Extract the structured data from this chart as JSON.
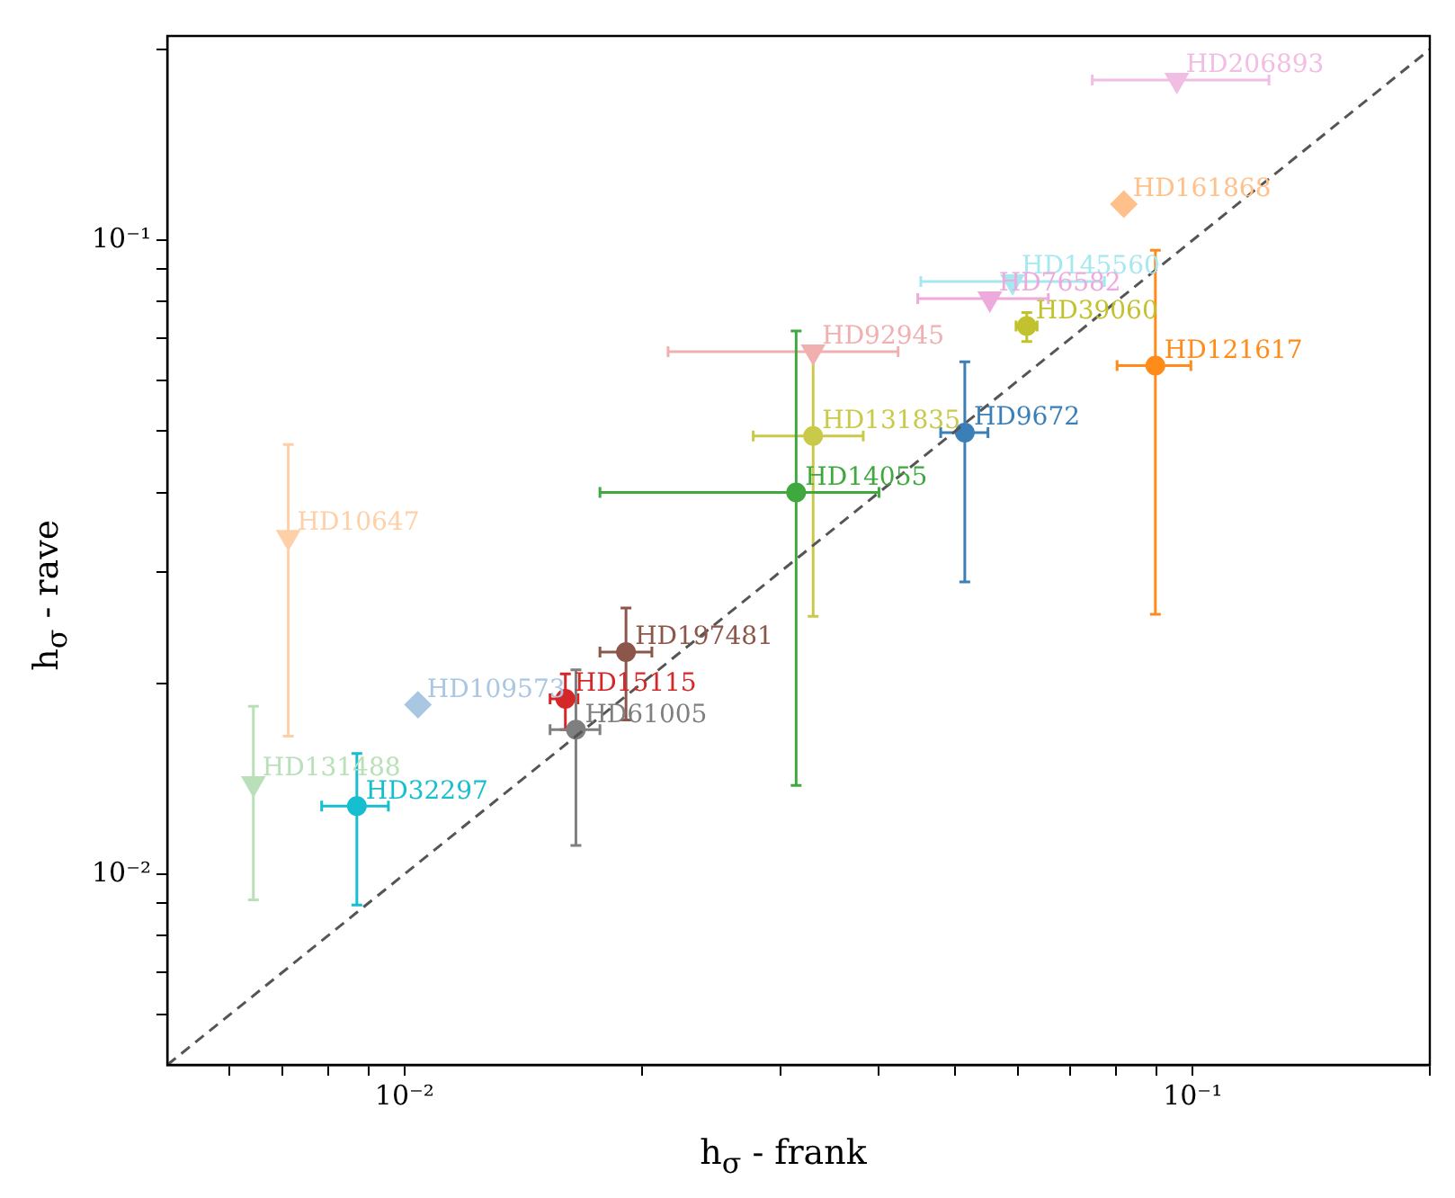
{
  "chart_data": {
    "type": "scatter",
    "xlabel": "h$_{σ}$ - frank",
    "ylabel": "h$_{σ}$ - rave",
    "log": "xy",
    "grid": false,
    "legend": false,
    "xlim": [
      0.005,
      0.2
    ],
    "ylim": [
      0.005,
      0.21
    ],
    "xticks": [
      {
        "value": 0.006,
        "label": null
      },
      {
        "value": 0.007,
        "label": null
      },
      {
        "value": 0.008,
        "label": null
      },
      {
        "value": 0.009,
        "label": null
      },
      {
        "value": 0.01,
        "label": "10⁻²"
      },
      {
        "value": 0.02,
        "label": null
      },
      {
        "value": 0.03,
        "label": null
      },
      {
        "value": 0.04,
        "label": null
      },
      {
        "value": 0.05,
        "label": null
      },
      {
        "value": 0.06,
        "label": null
      },
      {
        "value": 0.07,
        "label": null
      },
      {
        "value": 0.08,
        "label": null
      },
      {
        "value": 0.09,
        "label": null
      },
      {
        "value": 0.1,
        "label": "10⁻¹"
      },
      {
        "value": 0.2,
        "label": null
      }
    ],
    "yticks": [
      {
        "value": 0.006,
        "label": null
      },
      {
        "value": 0.007,
        "label": null
      },
      {
        "value": 0.008,
        "label": null
      },
      {
        "value": 0.009,
        "label": null
      },
      {
        "value": 0.01,
        "label": "10⁻²"
      },
      {
        "value": 0.02,
        "label": null
      },
      {
        "value": 0.03,
        "label": null
      },
      {
        "value": 0.04,
        "label": null
      },
      {
        "value": 0.05,
        "label": null
      },
      {
        "value": 0.06,
        "label": null
      },
      {
        "value": 0.07,
        "label": null
      },
      {
        "value": 0.08,
        "label": null
      },
      {
        "value": 0.09,
        "label": null
      },
      {
        "value": 0.1,
        "label": "10⁻¹"
      },
      {
        "value": 0.2,
        "label": null
      }
    ],
    "series": [
      {
        "type": "line",
        "color": "#555555",
        "line_style": "dashed",
        "marker": "none",
        "x": [
          0.005,
          0.2
        ],
        "values": [
          0.005,
          0.2
        ]
      },
      {
        "name": "HD206893",
        "color": "#f2bde3",
        "marker": "triangle",
        "x": [
          0.0955
        ],
        "values": [
          0.179
        ],
        "xerrors": [
          [
            0.0746,
            0.125
          ]
        ]
      },
      {
        "name": "HD161868",
        "color": "#ffc08a",
        "marker": "diamond",
        "x": [
          0.0818
        ],
        "values": [
          0.114
        ]
      },
      {
        "name": "HD145560",
        "color": "#a6e8f0",
        "marker": "triangle",
        "x": [
          0.0591
        ],
        "values": [
          0.0861
        ],
        "xerrors": [
          [
            0.0452,
            0.0773
          ]
        ]
      },
      {
        "name": "HD76582",
        "color": "#eeaadc",
        "marker": "triangle",
        "x": [
          0.0553
        ],
        "values": [
          0.0809
        ],
        "xerrors": [
          [
            0.0448,
            0.0656
          ]
        ]
      },
      {
        "name": "HD39060",
        "color": "#c2c22e",
        "marker": "circle",
        "x": [
          0.0616
        ],
        "values": [
          0.0732
        ],
        "errors": [
          [
            0.0692,
            0.0769
          ]
        ],
        "xerrors": [
          [
            0.0597,
            0.0635
          ]
        ]
      },
      {
        "name": "HD92945",
        "color": "#f0b0b0",
        "marker": "triangle",
        "x": [
          0.033
        ],
        "values": [
          0.0667
        ],
        "xerrors": [
          [
            0.0216,
            0.0423
          ]
        ]
      },
      {
        "name": "HD121617",
        "color": "#ff8c1a",
        "marker": "circle",
        "x": [
          0.0897
        ],
        "values": [
          0.0634
        ],
        "errors": [
          [
            0.0257,
            0.0964
          ]
        ],
        "xerrors": [
          [
            0.0802,
            0.0995
          ]
        ]
      },
      {
        "name": "HD131835",
        "color": "#c9c94a",
        "marker": "circle",
        "x": [
          0.033
        ],
        "values": [
          0.0491
        ],
        "errors": [
          [
            0.0255,
            0.0667
          ]
        ],
        "xerrors": [
          [
            0.0277,
            0.0382
          ]
        ]
      },
      {
        "name": "HD9672",
        "color": "#3a7fb8",
        "marker": "circle",
        "x": [
          0.0514
        ],
        "values": [
          0.0497
        ],
        "errors": [
          [
            0.0289,
            0.0643
          ]
        ],
        "xerrors": [
          [
            0.0479,
            0.055
          ]
        ]
      },
      {
        "name": "HD14055",
        "color": "#3fa83f",
        "marker": "circle",
        "x": [
          0.0314
        ],
        "values": [
          0.04
        ],
        "errors": [
          [
            0.0138,
            0.0719
          ]
        ],
        "xerrors": [
          [
            0.0177,
            0.04
          ]
        ]
      },
      {
        "name": "HD10647",
        "color": "#ffd0a8",
        "marker": "triangle",
        "x": [
          0.00712
        ],
        "values": [
          0.034
        ],
        "errors": [
          [
            0.0165,
            0.0476
          ]
        ]
      },
      {
        "name": "HD197481",
        "color": "#8c564b",
        "marker": "circle",
        "x": [
          0.0191
        ],
        "values": [
          0.0224
        ],
        "errors": [
          [
            0.0175,
            0.0263
          ]
        ],
        "xerrors": [
          [
            0.0177,
            0.0206
          ]
        ]
      },
      {
        "name": "HD15115",
        "color": "#d62728",
        "marker": "circle",
        "x": [
          0.016
        ],
        "values": [
          0.0189
        ],
        "errors": [
          [
            0.0169,
            0.0207
          ]
        ],
        "xerrors": [
          [
            0.0153,
            0.0166
          ]
        ]
      },
      {
        "name": "HD109573",
        "color": "#a9c6e3",
        "marker": "diamond",
        "x": [
          0.0104
        ],
        "values": [
          0.0185
        ]
      },
      {
        "name": "HD61005",
        "color": "#7f7f7f",
        "marker": "circle",
        "x": [
          0.0165
        ],
        "values": [
          0.0169
        ],
        "errors": [
          [
            0.0111,
            0.021
          ]
        ],
        "xerrors": [
          [
            0.0153,
            0.0177
          ]
        ]
      },
      {
        "name": "HD131488",
        "color": "#b9e0b9",
        "marker": "triangle",
        "x": [
          0.00643
        ],
        "values": [
          0.0139
        ],
        "errors": [
          [
            0.00911,
            0.0184
          ]
        ]
      },
      {
        "name": "HD32297",
        "color": "#17becf",
        "marker": "circle",
        "x": [
          0.0087
        ],
        "values": [
          0.0128
        ],
        "errors": [
          [
            0.00894,
            0.0155
          ]
        ],
        "xerrors": [
          [
            0.00785,
            0.00954
          ]
        ]
      }
    ]
  }
}
